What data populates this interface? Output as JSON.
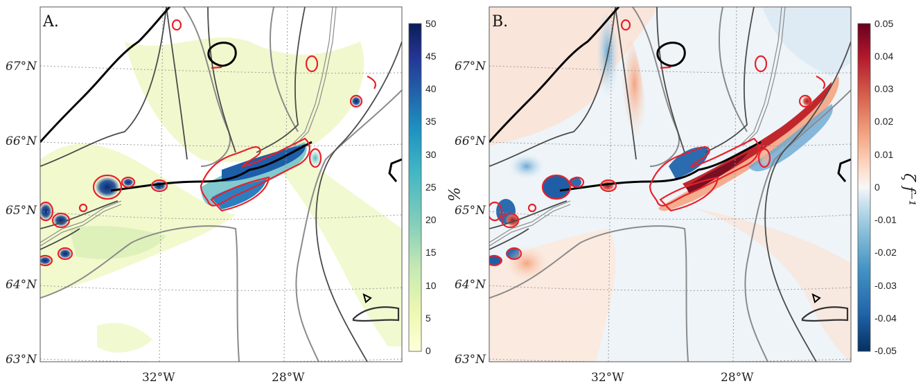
{
  "panels": [
    {
      "letter": "A.",
      "lat_labels": [
        "67°N",
        "66°N",
        "65°N",
        "64°N",
        "63°N"
      ],
      "lon_labels": [
        "32°W",
        "28°W"
      ],
      "colorbar": {
        "title": "%",
        "ticks": [
          "50",
          "45",
          "40",
          "35",
          "30",
          "25",
          "20",
          "15",
          "10",
          "5",
          "0"
        ],
        "range": [
          0,
          50
        ],
        "colors": [
          "#ffffd9",
          "#edf8b1",
          "#c7e9b4",
          "#7fcdbb",
          "#41b6c4",
          "#1d91c0",
          "#225ea8",
          "#253494",
          "#081d58"
        ]
      }
    },
    {
      "letter": "B.",
      "lat_labels": [
        "67°N",
        "66°N",
        "65°N",
        "64°N",
        "63°N"
      ],
      "lon_labels": [
        "32°W",
        "28°W"
      ],
      "colorbar": {
        "title": "ζ f⁻¹",
        "ticks": [
          "0.05",
          "0.04",
          "0.03",
          "0.02",
          "0.01",
          "0",
          "-0.01",
          "-0.02",
          "-0.03",
          "-0.04",
          "-0.05"
        ],
        "range": [
          -0.05,
          0.05
        ],
        "colors": [
          "#67001f",
          "#b2182b",
          "#d6604d",
          "#f4a582",
          "#fddbc7",
          "#f7f7f7",
          "#d1e5f0",
          "#92c5de",
          "#4393c3",
          "#2166ac",
          "#053061"
        ]
      }
    }
  ]
}
